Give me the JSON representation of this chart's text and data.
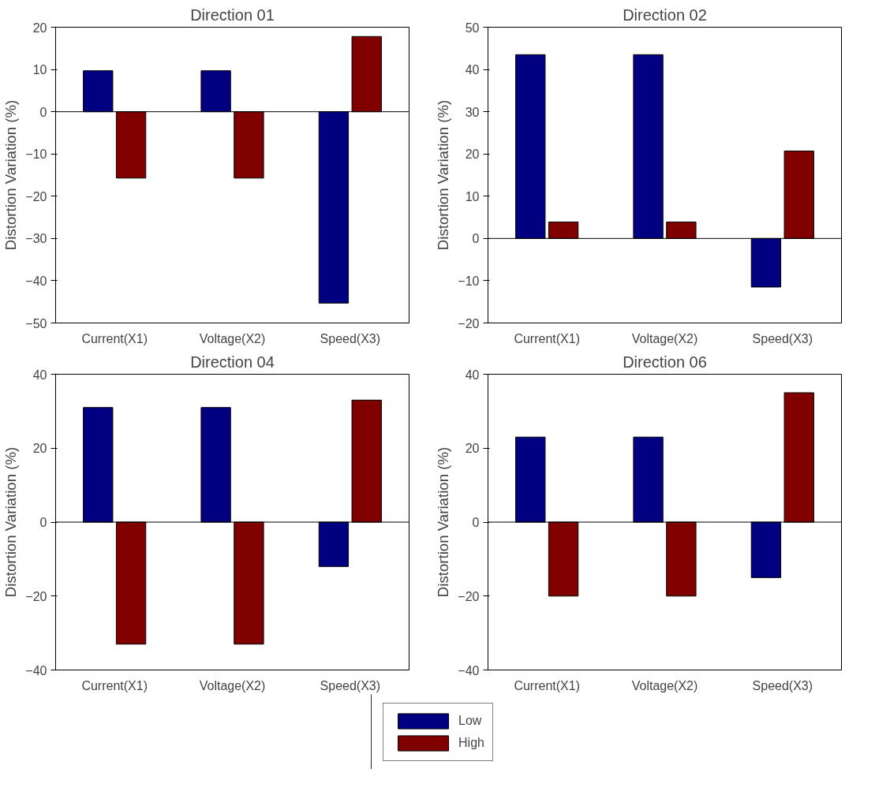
{
  "chart_data": [
    {
      "type": "bar",
      "title": "Direction 01",
      "ylabel": "Distortion Variation (%)",
      "categories": [
        "Current(X1)",
        "Voltage(X2)",
        "Speed(X3)"
      ],
      "ylim": [
        -50,
        20
      ],
      "yticks": [
        -50,
        -40,
        -30,
        -20,
        -10,
        0,
        10,
        20
      ],
      "series": [
        {
          "color": "#000080",
          "values": [
            9.7,
            9.7,
            -45.3
          ]
        },
        {
          "color": "#800000",
          "values": [
            -15.7,
            -15.7,
            17.8
          ]
        }
      ]
    },
    {
      "type": "bar",
      "title": "Direction 02",
      "ylabel": "Distortion Variation (%)",
      "categories": [
        "Current(X1)",
        "Voltage(X2)",
        "Speed(X3)"
      ],
      "ylim": [
        -20,
        50
      ],
      "yticks": [
        -20,
        -10,
        0,
        10,
        20,
        30,
        40,
        50
      ],
      "series": [
        {
          "color": "#000080",
          "values": [
            43.5,
            43.5,
            -11.5
          ]
        },
        {
          "color": "#800000",
          "values": [
            3.9,
            3.9,
            20.7
          ]
        }
      ]
    },
    {
      "type": "bar",
      "title": "Direction 04",
      "ylabel": "Distortion Variation (%)",
      "categories": [
        "Current(X1)",
        "Voltage(X2)",
        "Speed(X3)"
      ],
      "ylim": [
        -40,
        40
      ],
      "yticks": [
        -40,
        -20,
        0,
        20,
        40
      ],
      "series": [
        {
          "color": "#000080",
          "values": [
            31,
            31,
            -12
          ]
        },
        {
          "color": "#800000",
          "values": [
            -33,
            -33,
            33
          ]
        }
      ]
    },
    {
      "type": "bar",
      "title": "Direction 06",
      "ylabel": "Distortion Variation (%)",
      "categories": [
        "Current(X1)",
        "Voltage(X2)",
        "Speed(X3)"
      ],
      "ylim": [
        -40,
        40
      ],
      "yticks": [
        -40,
        -20,
        0,
        20,
        40
      ],
      "legend": "bottom",
      "series": [
        {
          "name": "Low",
          "color": "#000080",
          "values": [
            23,
            23,
            -15
          ]
        },
        {
          "name": "High",
          "color": "#800000",
          "values": [
            -20,
            -20,
            35
          ]
        }
      ]
    }
  ]
}
